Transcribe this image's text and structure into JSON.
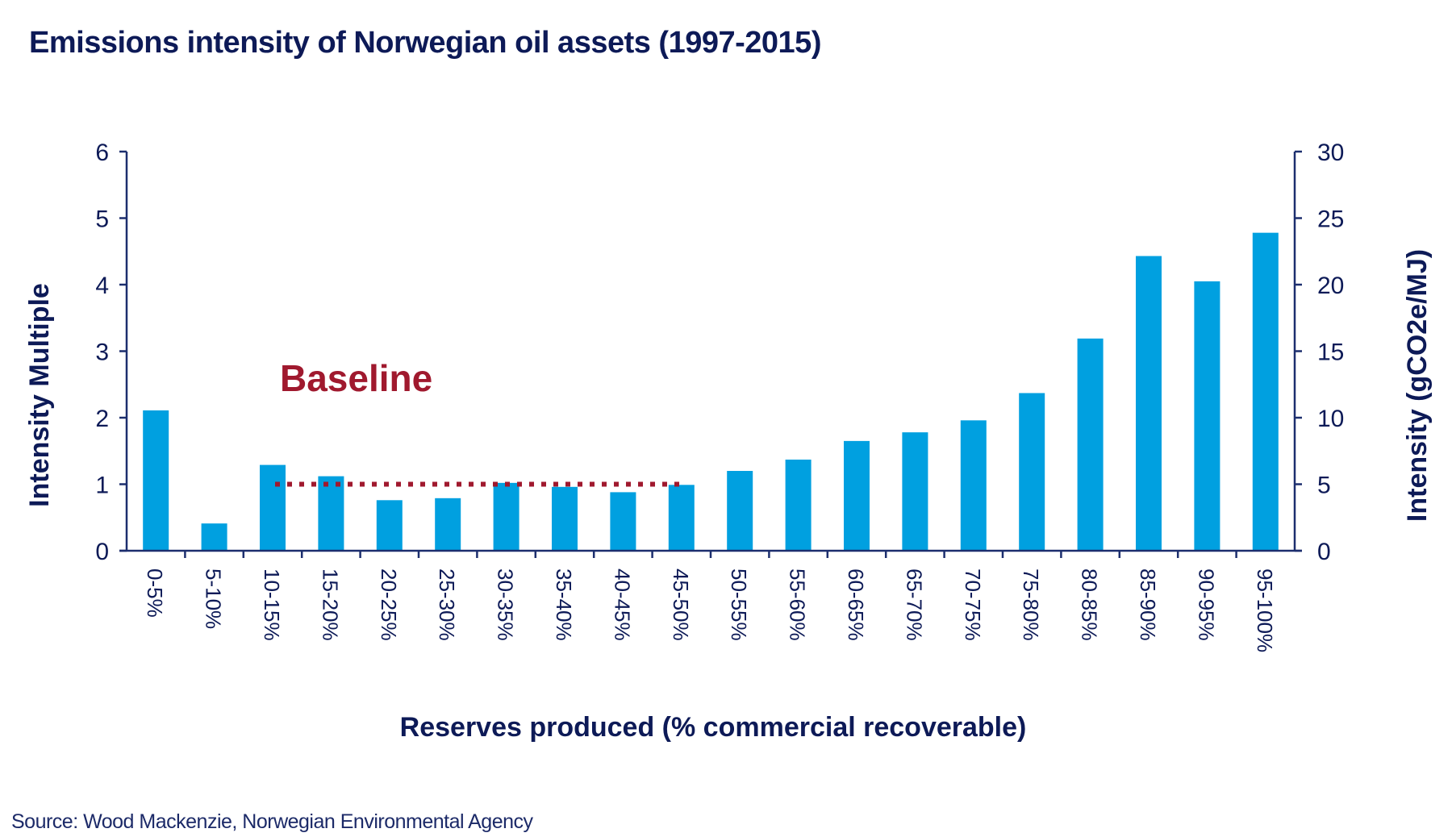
{
  "chart_data": {
    "type": "bar",
    "title": "Emissions intensity of Norwegian oil assets (1997-2015)",
    "xlabel": "Reserves produced (% commercial recoverable)",
    "ylabel": "Intensity Multiple",
    "y2label": "Intensity (gCO2e/MJ)",
    "ylim": [
      0,
      6
    ],
    "y2lim": [
      0,
      30
    ],
    "yticks": [
      "0",
      "1",
      "2",
      "3",
      "4",
      "5",
      "6"
    ],
    "y2ticks": [
      "0",
      "5",
      "10",
      "15",
      "20",
      "25",
      "30"
    ],
    "grid": false,
    "categories": [
      "0-5%",
      "5-10%",
      "10-15%",
      "15-20%",
      "20-25%",
      "25-30%",
      "30-35%",
      "35-40%",
      "40-45%",
      "45-50%",
      "50-55%",
      "55-60%",
      "60-65%",
      "65-70%",
      "70-75%",
      "75-80%",
      "80-85%",
      "85-90%",
      "90-95%",
      "95-100%"
    ],
    "series": [
      {
        "name": "Intensity Multiple",
        "values": [
          2.11,
          0.41,
          1.29,
          1.12,
          0.76,
          0.79,
          1.02,
          0.96,
          0.88,
          0.99,
          1.2,
          1.37,
          1.65,
          1.78,
          1.96,
          2.37,
          3.19,
          4.43,
          4.05,
          4.78
        ],
        "color": "#00a0e0"
      }
    ],
    "annotations": [
      {
        "text": "Baseline",
        "type": "dotted-line",
        "y": 1.0,
        "x_from": "10-15%",
        "x_to": "45-50%",
        "color": "#a0192e"
      }
    ],
    "source": "Source: Wood Mackenzie, Norwegian Environmental Agency"
  },
  "colors": {
    "axis": "#1c2e6e",
    "text": "#0d1a57",
    "bar": "#00a0e0",
    "baseline": "#a0192e"
  }
}
